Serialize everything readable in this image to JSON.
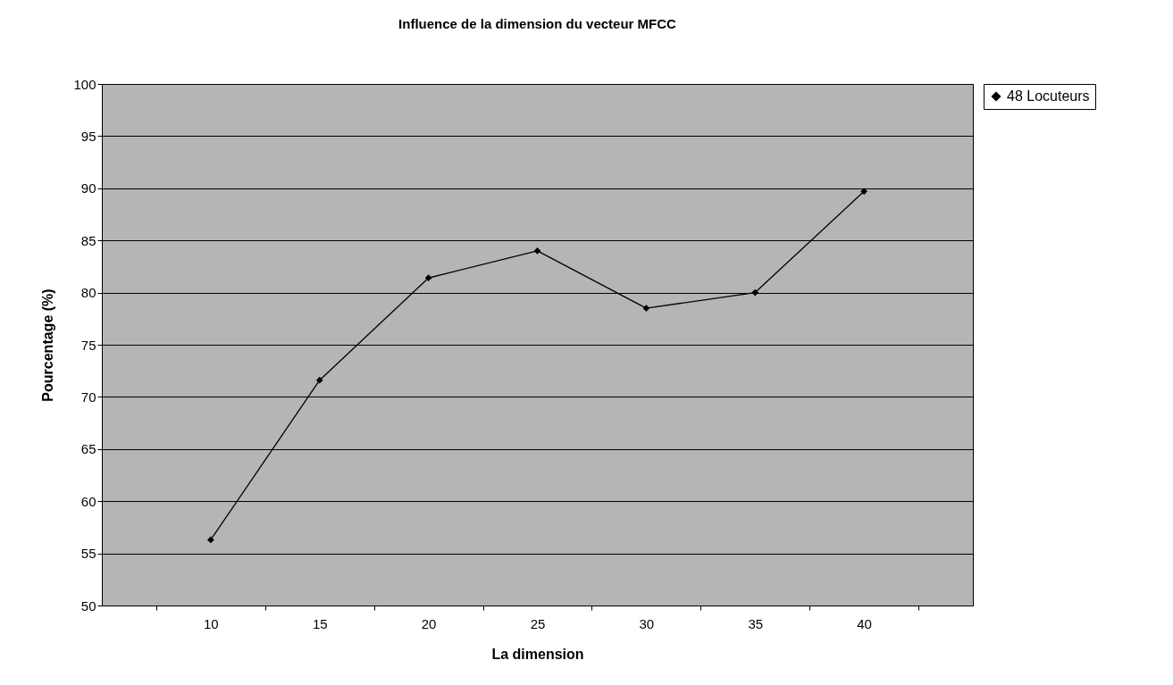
{
  "chart_data": {
    "type": "line",
    "title": "Influence de la dimension du vecteur MFCC",
    "xlabel": "La dimension",
    "ylabel": "Pourcentage (%)",
    "categories": [
      "10",
      "15",
      "20",
      "25",
      "30",
      "35",
      "40"
    ],
    "series": [
      {
        "name": "48 Locuteurs",
        "color": "#000000",
        "values": [
          56.3,
          71.6,
          81.4,
          84.0,
          78.5,
          80.0,
          89.7
        ]
      }
    ],
    "ylim": [
      50,
      100
    ],
    "yticks": [
      50,
      55,
      60,
      65,
      70,
      75,
      80,
      85,
      90,
      95,
      100
    ],
    "grid": "y",
    "legend": "right",
    "marker": "diamond",
    "line_style": "solid"
  }
}
